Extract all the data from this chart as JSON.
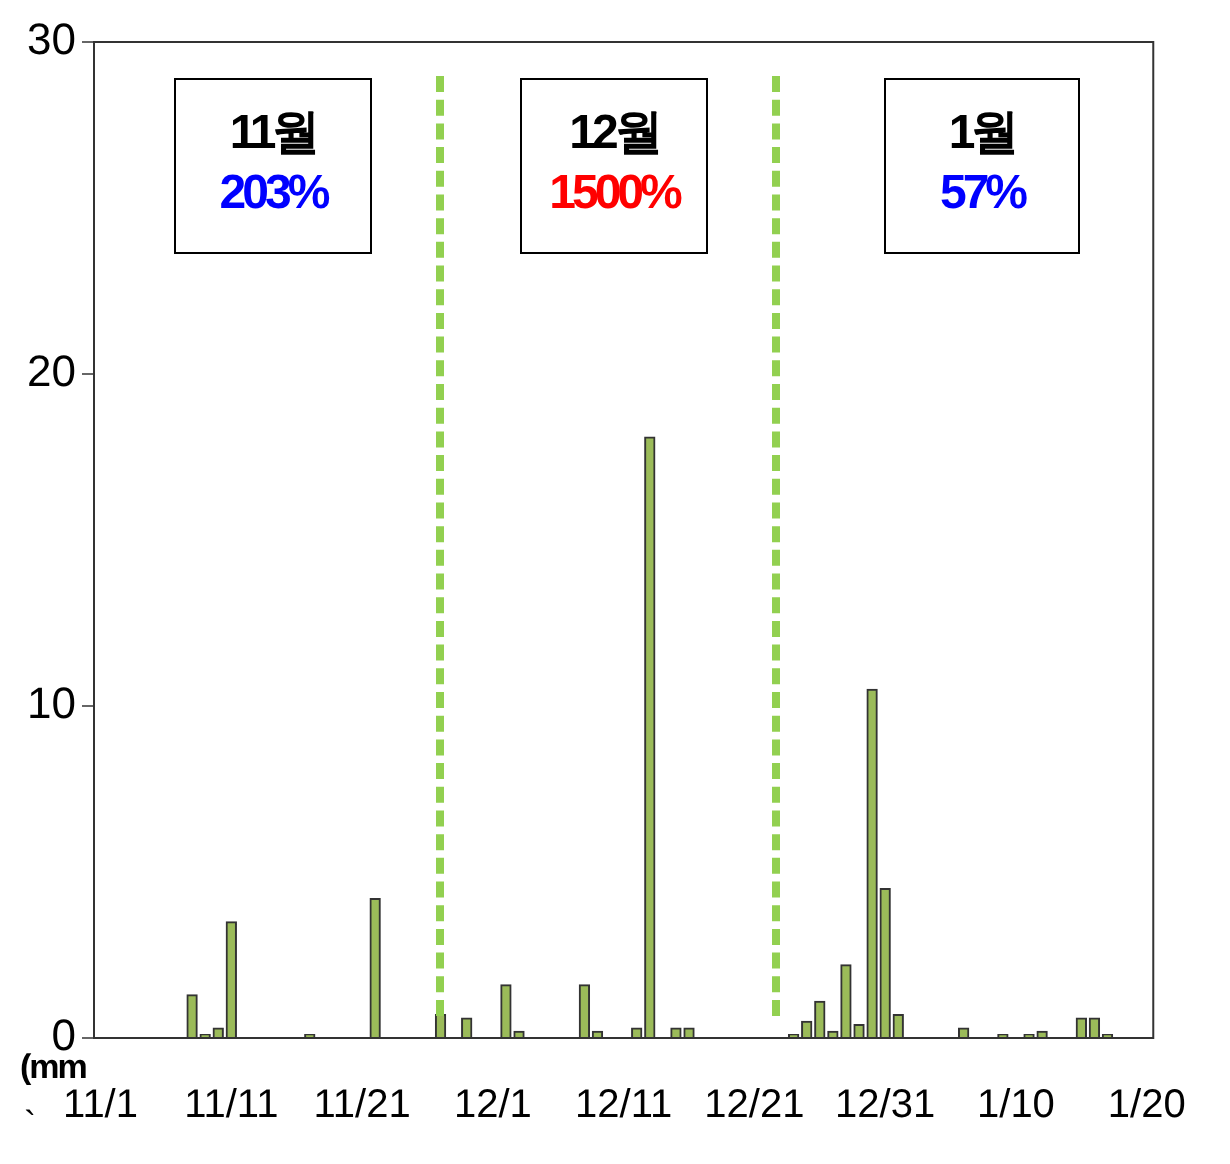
{
  "chart_data": {
    "type": "bar",
    "ylabel": "(mm",
    "color": "#9bbb59",
    "categories": [
      "11/1",
      null,
      null,
      null,
      null,
      null,
      null,
      null,
      null,
      null,
      "11/11",
      null,
      null,
      null,
      null,
      null,
      null,
      null,
      null,
      null,
      "11/21",
      null,
      null,
      null,
      null,
      null,
      null,
      null,
      null,
      null,
      "12/1",
      null,
      null,
      null,
      null,
      null,
      null,
      null,
      null,
      null,
      "12/11",
      null,
      null,
      null,
      null,
      null,
      null,
      null,
      null,
      null,
      "12/21",
      null,
      null,
      null,
      null,
      null,
      null,
      null,
      null,
      null,
      "12/31",
      null,
      null,
      null,
      null,
      null,
      null,
      null,
      null,
      null,
      "1/10",
      null,
      null,
      null,
      null,
      null,
      null,
      null,
      null,
      null,
      "1/20"
    ],
    "values": [
      0,
      0,
      0,
      0,
      0,
      0,
      0,
      1.3,
      0.1,
      0.3,
      3.5,
      0,
      0,
      0,
      0,
      0,
      0.1,
      0,
      0,
      0,
      0,
      4.2,
      0,
      0,
      0,
      0,
      0.7,
      0,
      0.6,
      0,
      0,
      1.6,
      0.2,
      0,
      0,
      0,
      0,
      1.6,
      0.2,
      0,
      0,
      0.3,
      18.1,
      0,
      0.3,
      0.3,
      0,
      0,
      0,
      0,
      0,
      0,
      0,
      0.1,
      0.5,
      1.1,
      0.2,
      2.2,
      0.4,
      10.5,
      4.5,
      0.7,
      0,
      0,
      0,
      0,
      0.3,
      0,
      0,
      0.1,
      0,
      0.1,
      0.2,
      0,
      0,
      0.6,
      0.6,
      0.1,
      0,
      0,
      0
    ],
    "ylim": [
      0,
      30
    ],
    "yticks": [
      0,
      10,
      20,
      30
    ],
    "grid": false,
    "legend": false,
    "annotations": [
      "11월",
      "203%",
      "12월",
      "1500%",
      "1월",
      "57%",
      "`"
    ]
  }
}
